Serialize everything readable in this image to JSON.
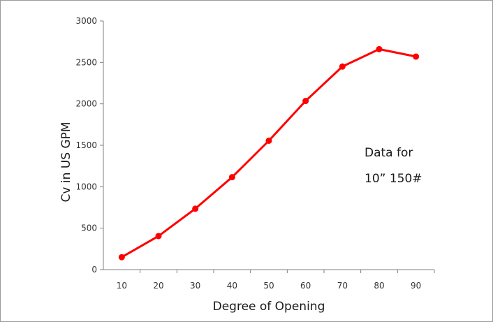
{
  "chart_data": {
    "type": "line",
    "title": "",
    "xlabel": "Degree of Opening",
    "ylabel": "Cv in US GPM",
    "x": [
      10,
      20,
      30,
      40,
      50,
      60,
      70,
      80,
      90
    ],
    "series": [
      {
        "values": [
          150,
          405,
          735,
          1115,
          1555,
          2035,
          2450,
          2660,
          2570
        ],
        "color": "#ff0000"
      }
    ],
    "ylim": [
      0,
      3000
    ],
    "yticks": [
      "0",
      "500",
      "1000",
      "1500",
      "2000",
      "2500",
      "3000"
    ],
    "xticks": [
      "10",
      "20",
      "30",
      "40",
      "50",
      "60",
      "70",
      "80",
      "90"
    ],
    "grid": false,
    "annotation": [
      "Data for",
      "10” 150#"
    ]
  }
}
